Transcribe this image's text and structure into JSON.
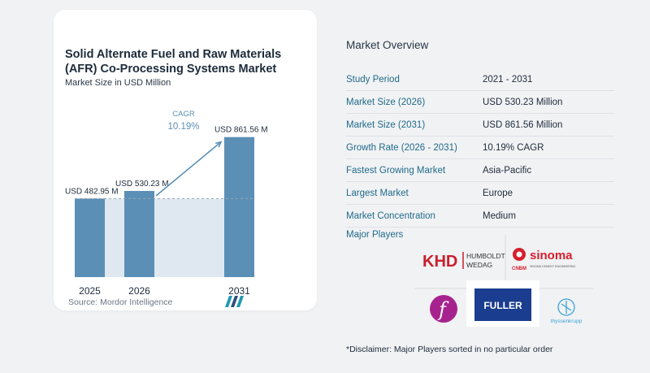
{
  "chart_data": {
    "type": "bar",
    "title": "Solid Alternate Fuel and Raw Materials (AFR) Co-Processing Systems Market",
    "subtitle": "Market Size in USD Million",
    "categories": [
      "2025",
      "2026",
      "2031"
    ],
    "values": [
      482.95,
      530.23,
      861.56
    ],
    "value_labels": [
      "USD 482.95 M",
      "USD 530.23 M",
      "USD 861.56 M"
    ],
    "cagr_label": "CAGR",
    "cagr_value": "10.19%",
    "ylim": [
      0,
      900
    ],
    "grid": false,
    "bar_color": "#5b8fb6",
    "bar_color_light": "#7ea7c8",
    "shade_color": "#dfe8f1",
    "accent": "#5b8fb6"
  },
  "source": "Source:  Mordor Intelligence",
  "overview": {
    "title": "Market Overview",
    "rows": [
      {
        "label": "Study Period",
        "value": "2021 - 2031"
      },
      {
        "label": "Market Size (2026)",
        "value": "USD 530.23 Million"
      },
      {
        "label": "Market Size (2031)",
        "value": "USD 861.56 Million"
      },
      {
        "label": "Growth Rate (2026 - 2031)",
        "value": "10.19% CAGR"
      },
      {
        "label": "Fastest Growing Market",
        "value": "Asia-Pacific"
      },
      {
        "label": "Largest Market",
        "value": "Europe"
      },
      {
        "label": "Market Concentration",
        "value": "Medium"
      }
    ]
  },
  "players": {
    "title": "Major Players",
    "logos": {
      "khd": {
        "mark": "KHD",
        "line1": "HUMBOLDT",
        "line2": "WEDAG"
      },
      "sinoma": {
        "mark": "sinoma",
        "sub": "CNBM",
        "tagline": "SINOMA CEMENT ENGINEERING"
      },
      "flsmidth": {
        "mark": "f"
      },
      "fuller": {
        "mark": "FULLER"
      },
      "thyssenkrupp": {
        "mark": "thyssenkrupp"
      }
    }
  },
  "disclaimer": "*Disclaimer: Major Players sorted in no particular order"
}
